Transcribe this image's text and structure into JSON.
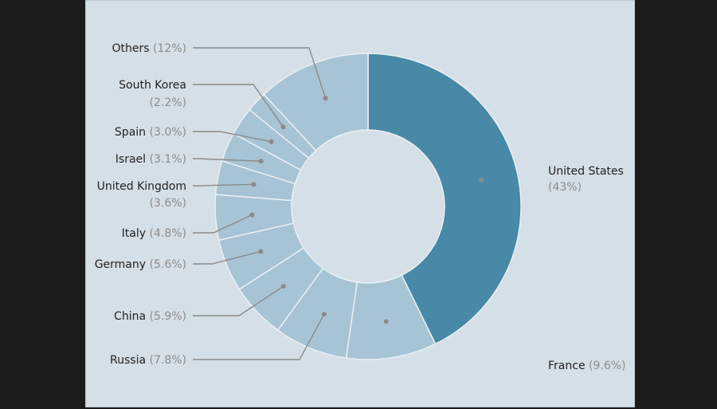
{
  "colors": {
    "page_background": "#1c1c1c",
    "panel_background": "#d5dfe7",
    "highlight_slice": "#4789a6",
    "other_slices": "#a6c4d4",
    "slice_border": "#e9f0f4",
    "hole": "#d5dfe7",
    "label_text": "#222222",
    "percent_text": "#8d8d8d",
    "leader_line": "#8a8a8a"
  },
  "chart_data": {
    "type": "pie",
    "variant": "donut",
    "title": "",
    "start": "12 o'clock, clockwise",
    "slices": [
      {
        "name": "United States",
        "value": 43,
        "label": "(43%)",
        "highlight": true
      },
      {
        "name": "France",
        "value": 9.6,
        "label": "(9.6%)"
      },
      {
        "name": "Russia",
        "value": 7.8,
        "label": "(7.8%)"
      },
      {
        "name": "China",
        "value": 5.9,
        "label": "(5.9%)"
      },
      {
        "name": "Germany",
        "value": 5.6,
        "label": "(5.6%)"
      },
      {
        "name": "Italy",
        "value": 4.8,
        "label": "(4.8%)"
      },
      {
        "name": "United Kingdom",
        "value": 3.6,
        "label": "(3.6%)"
      },
      {
        "name": "Israel",
        "value": 3.1,
        "label": "(3.1%)"
      },
      {
        "name": "Spain",
        "value": 3.0,
        "label": "(3.0%)"
      },
      {
        "name": "South Korea",
        "value": 2.2,
        "label": "(2.2%)"
      },
      {
        "name": "Others",
        "value": 12,
        "label": "(12%)"
      }
    ]
  }
}
